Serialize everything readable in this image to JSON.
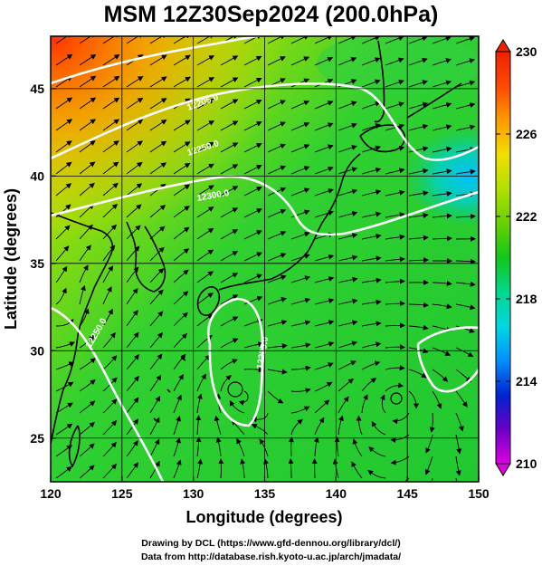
{
  "title": "MSM 12Z30Sep2024 (200.0hPa)",
  "map": {
    "xlabel": "Longitude (degrees)",
    "ylabel": "Latitude  (degrees)",
    "lon_ticks": [
      "120",
      "125",
      "130",
      "135",
      "140",
      "145",
      "150"
    ],
    "lat_ticks": [
      "25",
      "30",
      "35",
      "40",
      "45"
    ],
    "lon_range": [
      120,
      150
    ],
    "lat_range": [
      22.5,
      48
    ],
    "contour_labels": [
      "12205.0",
      "12250.0",
      "12300.0",
      "12225.0",
      "12250.0"
    ]
  },
  "colorbar": {
    "ticks": [
      "230",
      "226",
      "222",
      "218",
      "214",
      "210"
    ],
    "min": 210,
    "max": 230,
    "colors": [
      "#e000e0",
      "#6a00c8",
      "#0022d0",
      "#0090ff",
      "#00d8e0",
      "#00d890",
      "#10c818",
      "#6ad000",
      "#b0e000",
      "#f0e000",
      "#ff9a00",
      "#ff4a00",
      "#f02000"
    ]
  },
  "credits": {
    "line1": "Drawing by DCL (https://www.gfd-dennou.org/library/dcl/)",
    "line2": "Data from http://database.rish.kyoto-u.ac.jp/arch/jmadata/"
  }
}
